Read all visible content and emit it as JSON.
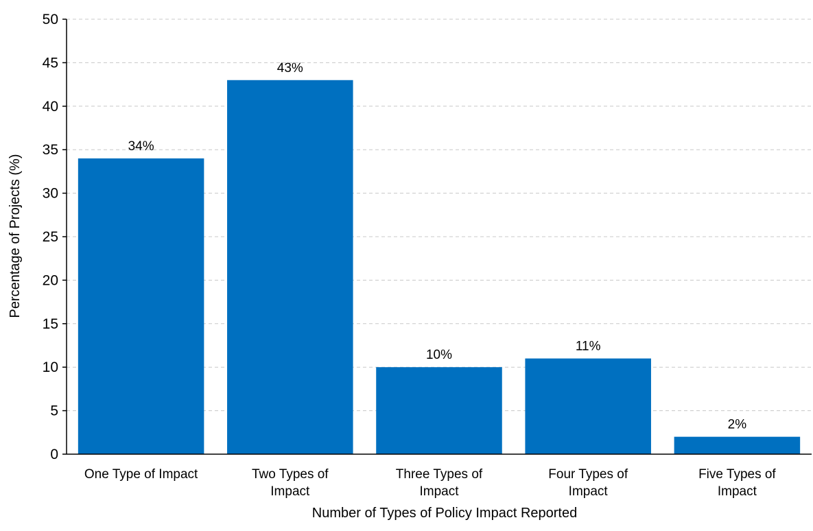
{
  "chart_data": {
    "type": "bar",
    "title": "",
    "xlabel": "Number  of Types of Policy Impact Reported",
    "ylabel": "Percentage of Projects (%)",
    "categories": [
      [
        "One Type of Impact"
      ],
      [
        "Two Types of",
        "Impact"
      ],
      [
        "Three Types of",
        "Impact"
      ],
      [
        "Four Types of",
        "Impact"
      ],
      [
        "Five Types of",
        "Impact"
      ]
    ],
    "values": [
      34,
      43,
      10,
      11,
      2
    ],
    "data_labels": [
      "34%",
      "43%",
      "10%",
      "11%",
      "2%"
    ],
    "ylim": [
      0,
      50
    ],
    "yticks": [
      0,
      5,
      10,
      15,
      20,
      25,
      30,
      35,
      40,
      45,
      50
    ],
    "grid": true,
    "legend": "none",
    "colors": {
      "bar": "#0070C0",
      "grid": "#c8c8c8",
      "axis": "#000000"
    }
  }
}
